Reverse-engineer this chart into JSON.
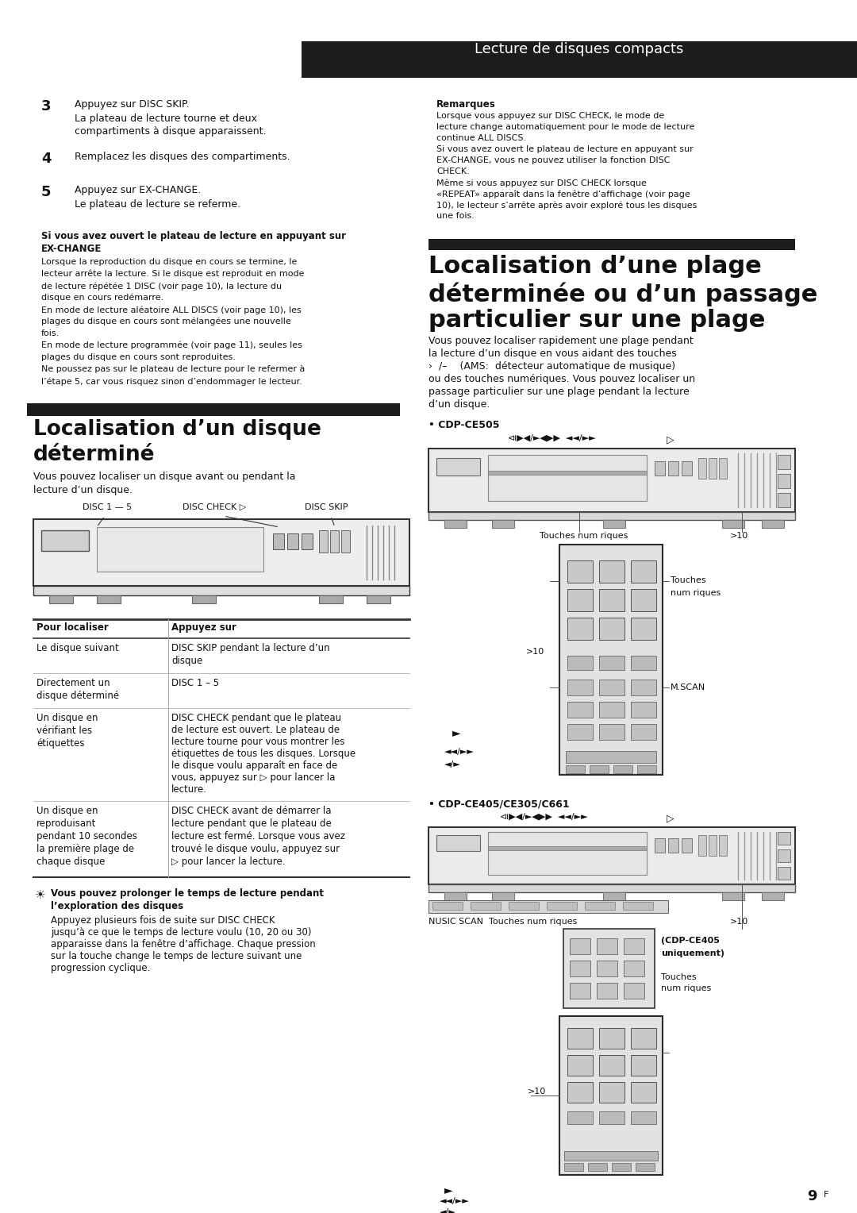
{
  "bg_color": "#ffffff",
  "header_bg": "#1c1c1c",
  "header_text": "Lecture de disques compacts",
  "header_text_color": "#ffffff",
  "body_text_color": "#111111",
  "section_bar_color": "#1c1c1c",
  "page_number": "9",
  "page_suffix": "F"
}
